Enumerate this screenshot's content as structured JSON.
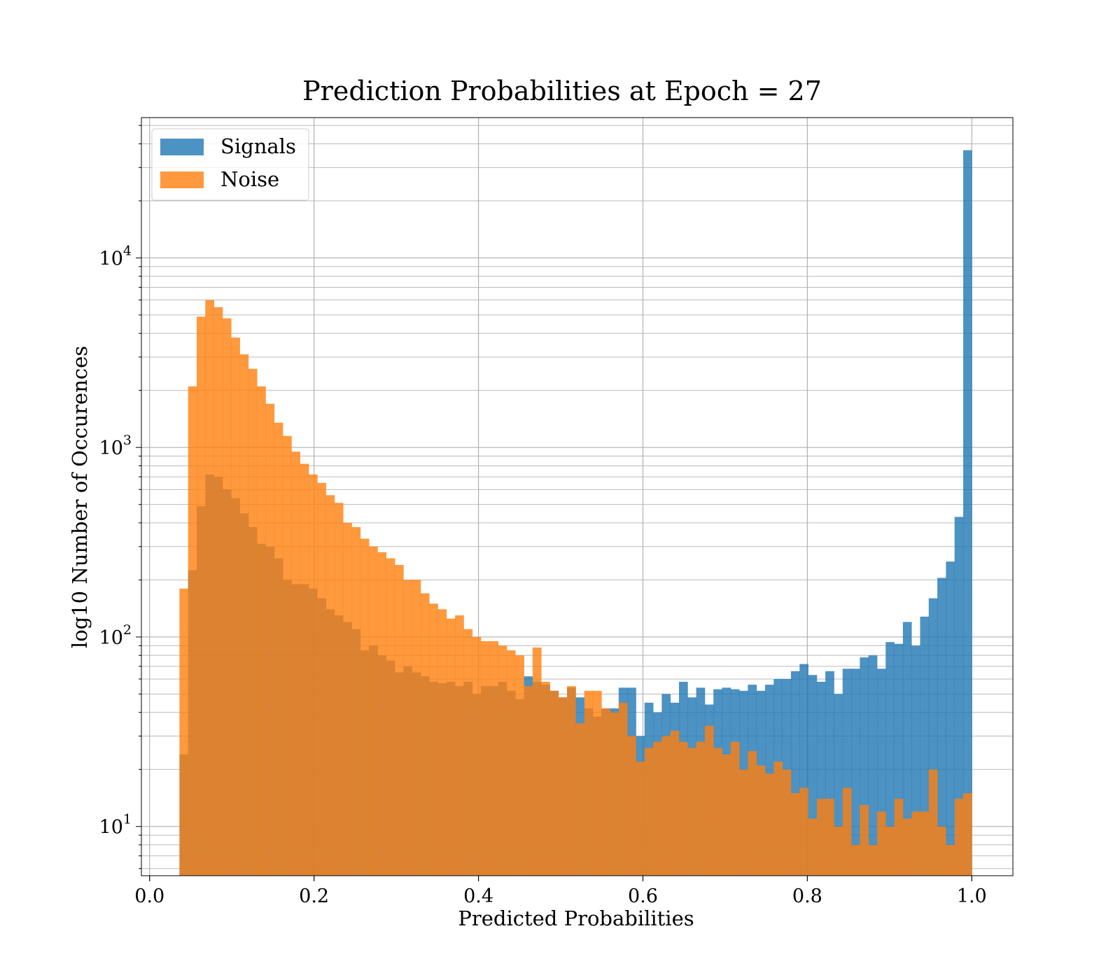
{
  "chart_data": {
    "type": "histogram",
    "title": "Prediction Probabilities at Epoch = 27",
    "xlabel": "Predicted Probabilities",
    "ylabel": "log10 Number of Occurences",
    "yscale": "log",
    "xlim": [
      -0.01,
      1.05
    ],
    "ylim": [
      5.5,
      55000
    ],
    "grid": true,
    "legend_position": "upper left",
    "x_ticks": [
      "0.0",
      "0.2",
      "0.4",
      "0.6",
      "0.8",
      "1.0"
    ],
    "y_ticks": [
      {
        "base": "10",
        "exp": "1"
      },
      {
        "base": "10",
        "exp": "2"
      },
      {
        "base": "10",
        "exp": "3"
      },
      {
        "base": "10",
        "exp": "4"
      }
    ],
    "series": [
      {
        "name": "Signals",
        "color": "#1f77b4",
        "bin_edges": [
          0.0363,
          1.0
        ],
        "counts": [
          24,
          225,
          490,
          720,
          700,
          600,
          540,
          450,
          380,
          310,
          300,
          260,
          200,
          190,
          190,
          180,
          160,
          140,
          130,
          120,
          110,
          85,
          90,
          80,
          75,
          65,
          70,
          65,
          62,
          58,
          57,
          58,
          55,
          58,
          50,
          55,
          55,
          58,
          52,
          47,
          62,
          58,
          56,
          52,
          48,
          54,
          48,
          42,
          38,
          42,
          42,
          54,
          54,
          30,
          45,
          40,
          50,
          45,
          58,
          48,
          54,
          44,
          53,
          54,
          53,
          52,
          56,
          52,
          56,
          60,
          60,
          66,
          72,
          63,
          58,
          66,
          50,
          68,
          68,
          78,
          80,
          68,
          94,
          92,
          120,
          90,
          128,
          160,
          205,
          250,
          430,
          37000
        ]
      },
      {
        "name": "Noise",
        "color": "#ff7f0e",
        "bin_edges": [
          0.0363,
          1.0
        ],
        "counts": [
          180,
          2100,
          4900,
          6000,
          5500,
          4800,
          3800,
          3100,
          2600,
          2100,
          1700,
          1350,
          1150,
          950,
          820,
          720,
          650,
          560,
          510,
          400,
          380,
          330,
          300,
          280,
          260,
          240,
          200,
          200,
          170,
          150,
          140,
          125,
          130,
          110,
          100,
          95,
          95,
          90,
          85,
          80,
          55,
          88,
          58,
          52,
          48,
          55,
          35,
          52,
          52,
          42,
          40,
          45,
          30,
          22,
          26,
          28,
          30,
          32,
          28,
          26,
          28,
          34,
          26,
          24,
          28,
          20,
          25,
          21,
          19,
          22,
          20,
          15,
          16,
          11,
          14,
          14,
          10,
          16,
          8,
          13,
          8,
          12,
          10,
          14,
          11,
          12,
          12,
          20,
          10,
          8,
          14,
          15
        ]
      }
    ]
  }
}
